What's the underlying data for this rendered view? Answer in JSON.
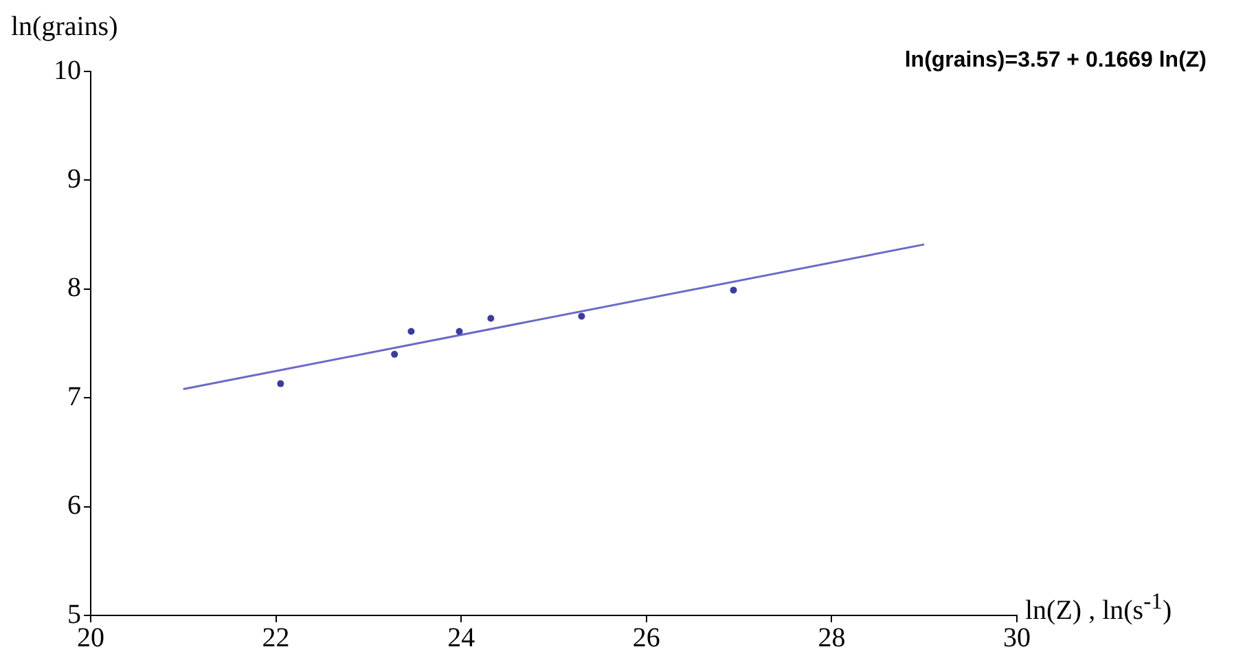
{
  "chart_data": {
    "type": "scatter",
    "xlabel": "ln(Z) ,  ln(s$^{-1}$)",
    "ylabel": "ln(grains)",
    "annotations": [
      "ln(grains)=3.57 + 0.1669 ln(Z)"
    ],
    "xlim": [
      20,
      30
    ],
    "xticks": [
      20,
      22,
      24,
      26,
      28,
      30
    ],
    "ylim": [
      5,
      10
    ],
    "yticks": [
      5,
      6,
      7,
      8,
      9,
      10
    ],
    "grid": false,
    "legend": false,
    "marker": "circle",
    "series": [
      {
        "color": "#3c3c9c",
        "x": [
          22.05,
          23.28,
          23.46,
          23.98,
          24.32,
          25.3,
          26.94
        ],
        "values": [
          7.13,
          7.4,
          7.61,
          7.61,
          7.73,
          7.75,
          7.99
        ]
      },
      {
        "type": "line",
        "color": "#6a6ac8",
        "marker": "none",
        "line_style": "solid",
        "x": [
          21,
          29
        ],
        "values": [
          7.08,
          8.41
        ]
      }
    ]
  }
}
